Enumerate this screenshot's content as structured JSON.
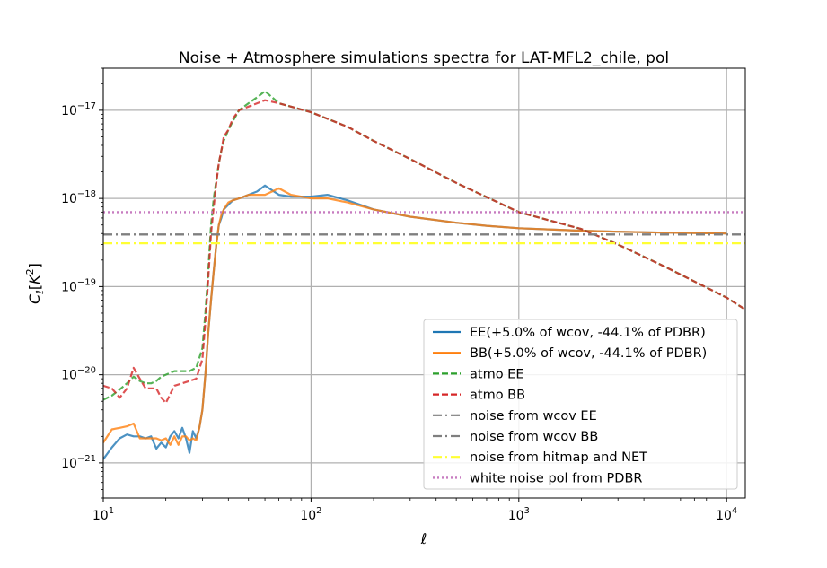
{
  "chart_data": {
    "type": "line",
    "title": "Noise + Atmosphere simulations spectra for LAT-MFL2_chile, pol",
    "xlabel": "ℓ",
    "ylabel": "C_ℓ[K^2]",
    "xscale": "log",
    "yscale": "log",
    "xlim": [
      10,
      12300
    ],
    "ylim": [
      4e-22,
      3e-17
    ],
    "grid": true,
    "legend_position": "lower right",
    "x_ticks": [
      {
        "exp": "1",
        "label_base": "10",
        "label_exp": "1"
      },
      {
        "exp": "2",
        "label_base": "10",
        "label_exp": "2"
      },
      {
        "exp": "3",
        "label_base": "10",
        "label_exp": "3"
      },
      {
        "exp": "4",
        "label_base": "10",
        "label_exp": "4"
      }
    ],
    "y_ticks": [
      {
        "exp": "-21",
        "label_base": "10",
        "label_exp": "−21"
      },
      {
        "exp": "-20",
        "label_base": "10",
        "label_exp": "−20"
      },
      {
        "exp": "-19",
        "label_base": "10",
        "label_exp": "−19"
      },
      {
        "exp": "-18",
        "label_base": "10",
        "label_exp": "−18"
      },
      {
        "exp": "-17",
        "label_base": "10",
        "label_exp": "−17"
      }
    ],
    "series": [
      {
        "name": "EE(+5.0% of wcov, -44.1% of PDBR)",
        "color": "#1f77b4",
        "style": "solid",
        "x": [
          10,
          11,
          12,
          13,
          14,
          15,
          16,
          17,
          18,
          19,
          20,
          21,
          22,
          23,
          24,
          25,
          26,
          27,
          28,
          29,
          30,
          31,
          32,
          33,
          34,
          35,
          36,
          37,
          38,
          40,
          42,
          45,
          50,
          55,
          60,
          70,
          80,
          100,
          120,
          150,
          200,
          300,
          500,
          700,
          1000,
          2000,
          3000,
          5000,
          7000,
          10000
        ],
        "y": [
          1.1e-21,
          1.5e-21,
          1.9e-21,
          2.1e-21,
          2e-21,
          2e-21,
          1.9e-21,
          2e-21,
          1.45e-21,
          1.7e-21,
          1.5e-21,
          2e-21,
          2.3e-21,
          1.9e-21,
          2.5e-21,
          1.9e-21,
          1.3e-21,
          2.3e-21,
          1.9e-21,
          2.5e-21,
          4e-21,
          1e-20,
          3e-20,
          7e-20,
          1.5e-19,
          3e-19,
          5e-19,
          6e-19,
          7.5e-19,
          8.5e-19,
          9.5e-19,
          1e-18,
          1.1e-18,
          1.2e-18,
          1.4e-18,
          1.1e-18,
          1.05e-18,
          1.05e-18,
          1.1e-18,
          9.5e-19,
          7.5e-19,
          6.2e-19,
          5.3e-19,
          4.9e-19,
          4.6e-19,
          4.3e-19,
          4.2e-19,
          4.1e-19,
          4.05e-19,
          4e-19
        ]
      },
      {
        "name": "BB(+5.0% of wcov, -44.1% of PDBR)",
        "color": "#ff7f0e",
        "style": "solid",
        "x": [
          10,
          11,
          12,
          13,
          14,
          15,
          16,
          17,
          18,
          19,
          20,
          21,
          22,
          23,
          24,
          25,
          26,
          27,
          28,
          29,
          30,
          31,
          32,
          33,
          34,
          35,
          36,
          37,
          38,
          40,
          42,
          45,
          50,
          55,
          60,
          70,
          80,
          100,
          120,
          150,
          200,
          300,
          500,
          700,
          1000,
          2000,
          3000,
          5000,
          7000,
          10000
        ],
        "y": [
          1.7e-21,
          2.4e-21,
          2.5e-21,
          2.6e-21,
          2.8e-21,
          1.9e-21,
          1.9e-21,
          1.9e-21,
          1.9e-21,
          1.8e-21,
          1.9e-21,
          1.6e-21,
          2e-21,
          1.6e-21,
          2e-21,
          2e-21,
          1.8e-21,
          1.9e-21,
          1.8e-21,
          2.5e-21,
          4e-21,
          1e-20,
          3e-20,
          7e-20,
          1.5e-19,
          3e-19,
          5e-19,
          6.5e-19,
          7.5e-19,
          9e-19,
          9.5e-19,
          1e-18,
          1.1e-18,
          1.1e-18,
          1.1e-18,
          1.3e-18,
          1.1e-18,
          1e-18,
          1e-18,
          9e-19,
          7.5e-19,
          6.2e-19,
          5.3e-19,
          4.9e-19,
          4.6e-19,
          4.3e-19,
          4.2e-19,
          4.1e-19,
          4.05e-19,
          4e-19
        ]
      },
      {
        "name": "atmo EE",
        "color": "#2ca02c",
        "style": "dashed",
        "x": [
          10,
          11,
          12,
          13,
          14,
          15,
          16,
          17,
          18,
          19,
          20,
          22,
          24,
          26,
          28,
          30,
          31,
          32,
          33,
          34,
          35,
          36,
          37,
          38,
          40,
          42,
          45,
          50,
          55,
          60,
          70,
          80,
          100,
          150,
          200,
          300,
          500,
          1000,
          2000,
          3000,
          5000,
          10000,
          12300
        ],
        "y": [
          5.2e-21,
          5.8e-21,
          6.8e-21,
          8e-21,
          9.5e-21,
          8.5e-21,
          8e-21,
          8e-21,
          8.5e-21,
          9.5e-21,
          1e-20,
          1.1e-20,
          1.1e-20,
          1.1e-20,
          1.2e-20,
          2e-20,
          5e-20,
          1.5e-19,
          5e-19,
          1e-18,
          1.6e-18,
          2.5e-18,
          3.5e-18,
          4.5e-18,
          6e-18,
          7.5e-18,
          1e-17,
          1.2e-17,
          1.4e-17,
          1.65e-17,
          1.2e-17,
          1.1e-17,
          9.5e-18,
          6.5e-18,
          4.5e-18,
          2.8e-18,
          1.5e-18,
          7e-19,
          4.5e-19,
          3e-19,
          1.7e-19,
          7.5e-20,
          5.5e-20
        ]
      },
      {
        "name": "atmo BB",
        "color": "#d62728",
        "style": "dashed",
        "x": [
          10,
          11,
          12,
          13,
          14,
          15,
          16,
          17,
          18,
          19,
          20,
          22,
          24,
          26,
          28,
          30,
          31,
          32,
          33,
          34,
          35,
          36,
          37,
          38,
          40,
          42,
          45,
          50,
          55,
          60,
          70,
          80,
          100,
          150,
          200,
          300,
          500,
          1000,
          2000,
          3000,
          5000,
          10000,
          12300
        ],
        "y": [
          7.5e-21,
          7e-21,
          5.5e-21,
          7e-21,
          1.2e-20,
          9e-21,
          7e-21,
          7e-21,
          7e-21,
          5.5e-21,
          4.8e-21,
          7.5e-21,
          8e-21,
          8.5e-21,
          9e-21,
          1.5e-20,
          4e-20,
          1.2e-19,
          4e-19,
          8e-19,
          1.5e-18,
          2.5e-18,
          3.5e-18,
          5e-18,
          6e-18,
          8e-18,
          1e-17,
          1.1e-17,
          1.2e-17,
          1.3e-17,
          1.2e-17,
          1.1e-17,
          9.5e-18,
          6.5e-18,
          4.5e-18,
          2.8e-18,
          1.5e-18,
          7e-19,
          4.5e-19,
          3e-19,
          1.7e-19,
          7.5e-20,
          5.5e-20
        ]
      },
      {
        "name": "noise from wcov EE",
        "color": "#7f7f7f",
        "style": "dashdot",
        "x": [
          10,
          12300
        ],
        "y": [
          3.9e-19,
          3.9e-19
        ]
      },
      {
        "name": "noise from wcov BB",
        "color": "#7f7f7f",
        "style": "dashdot",
        "x": [
          10,
          12300
        ],
        "y": [
          3.9e-19,
          3.9e-19
        ]
      },
      {
        "name": "noise from hitmap and NET",
        "color": "#ffff33",
        "style": "dashdot",
        "x": [
          10,
          12300
        ],
        "y": [
          3.1e-19,
          3.1e-19
        ]
      },
      {
        "name": "white noise pol from PDBR",
        "color": "#c77cc0",
        "style": "dotted",
        "x": [
          10,
          12300
        ],
        "y": [
          7e-19,
          7e-19
        ]
      }
    ]
  }
}
